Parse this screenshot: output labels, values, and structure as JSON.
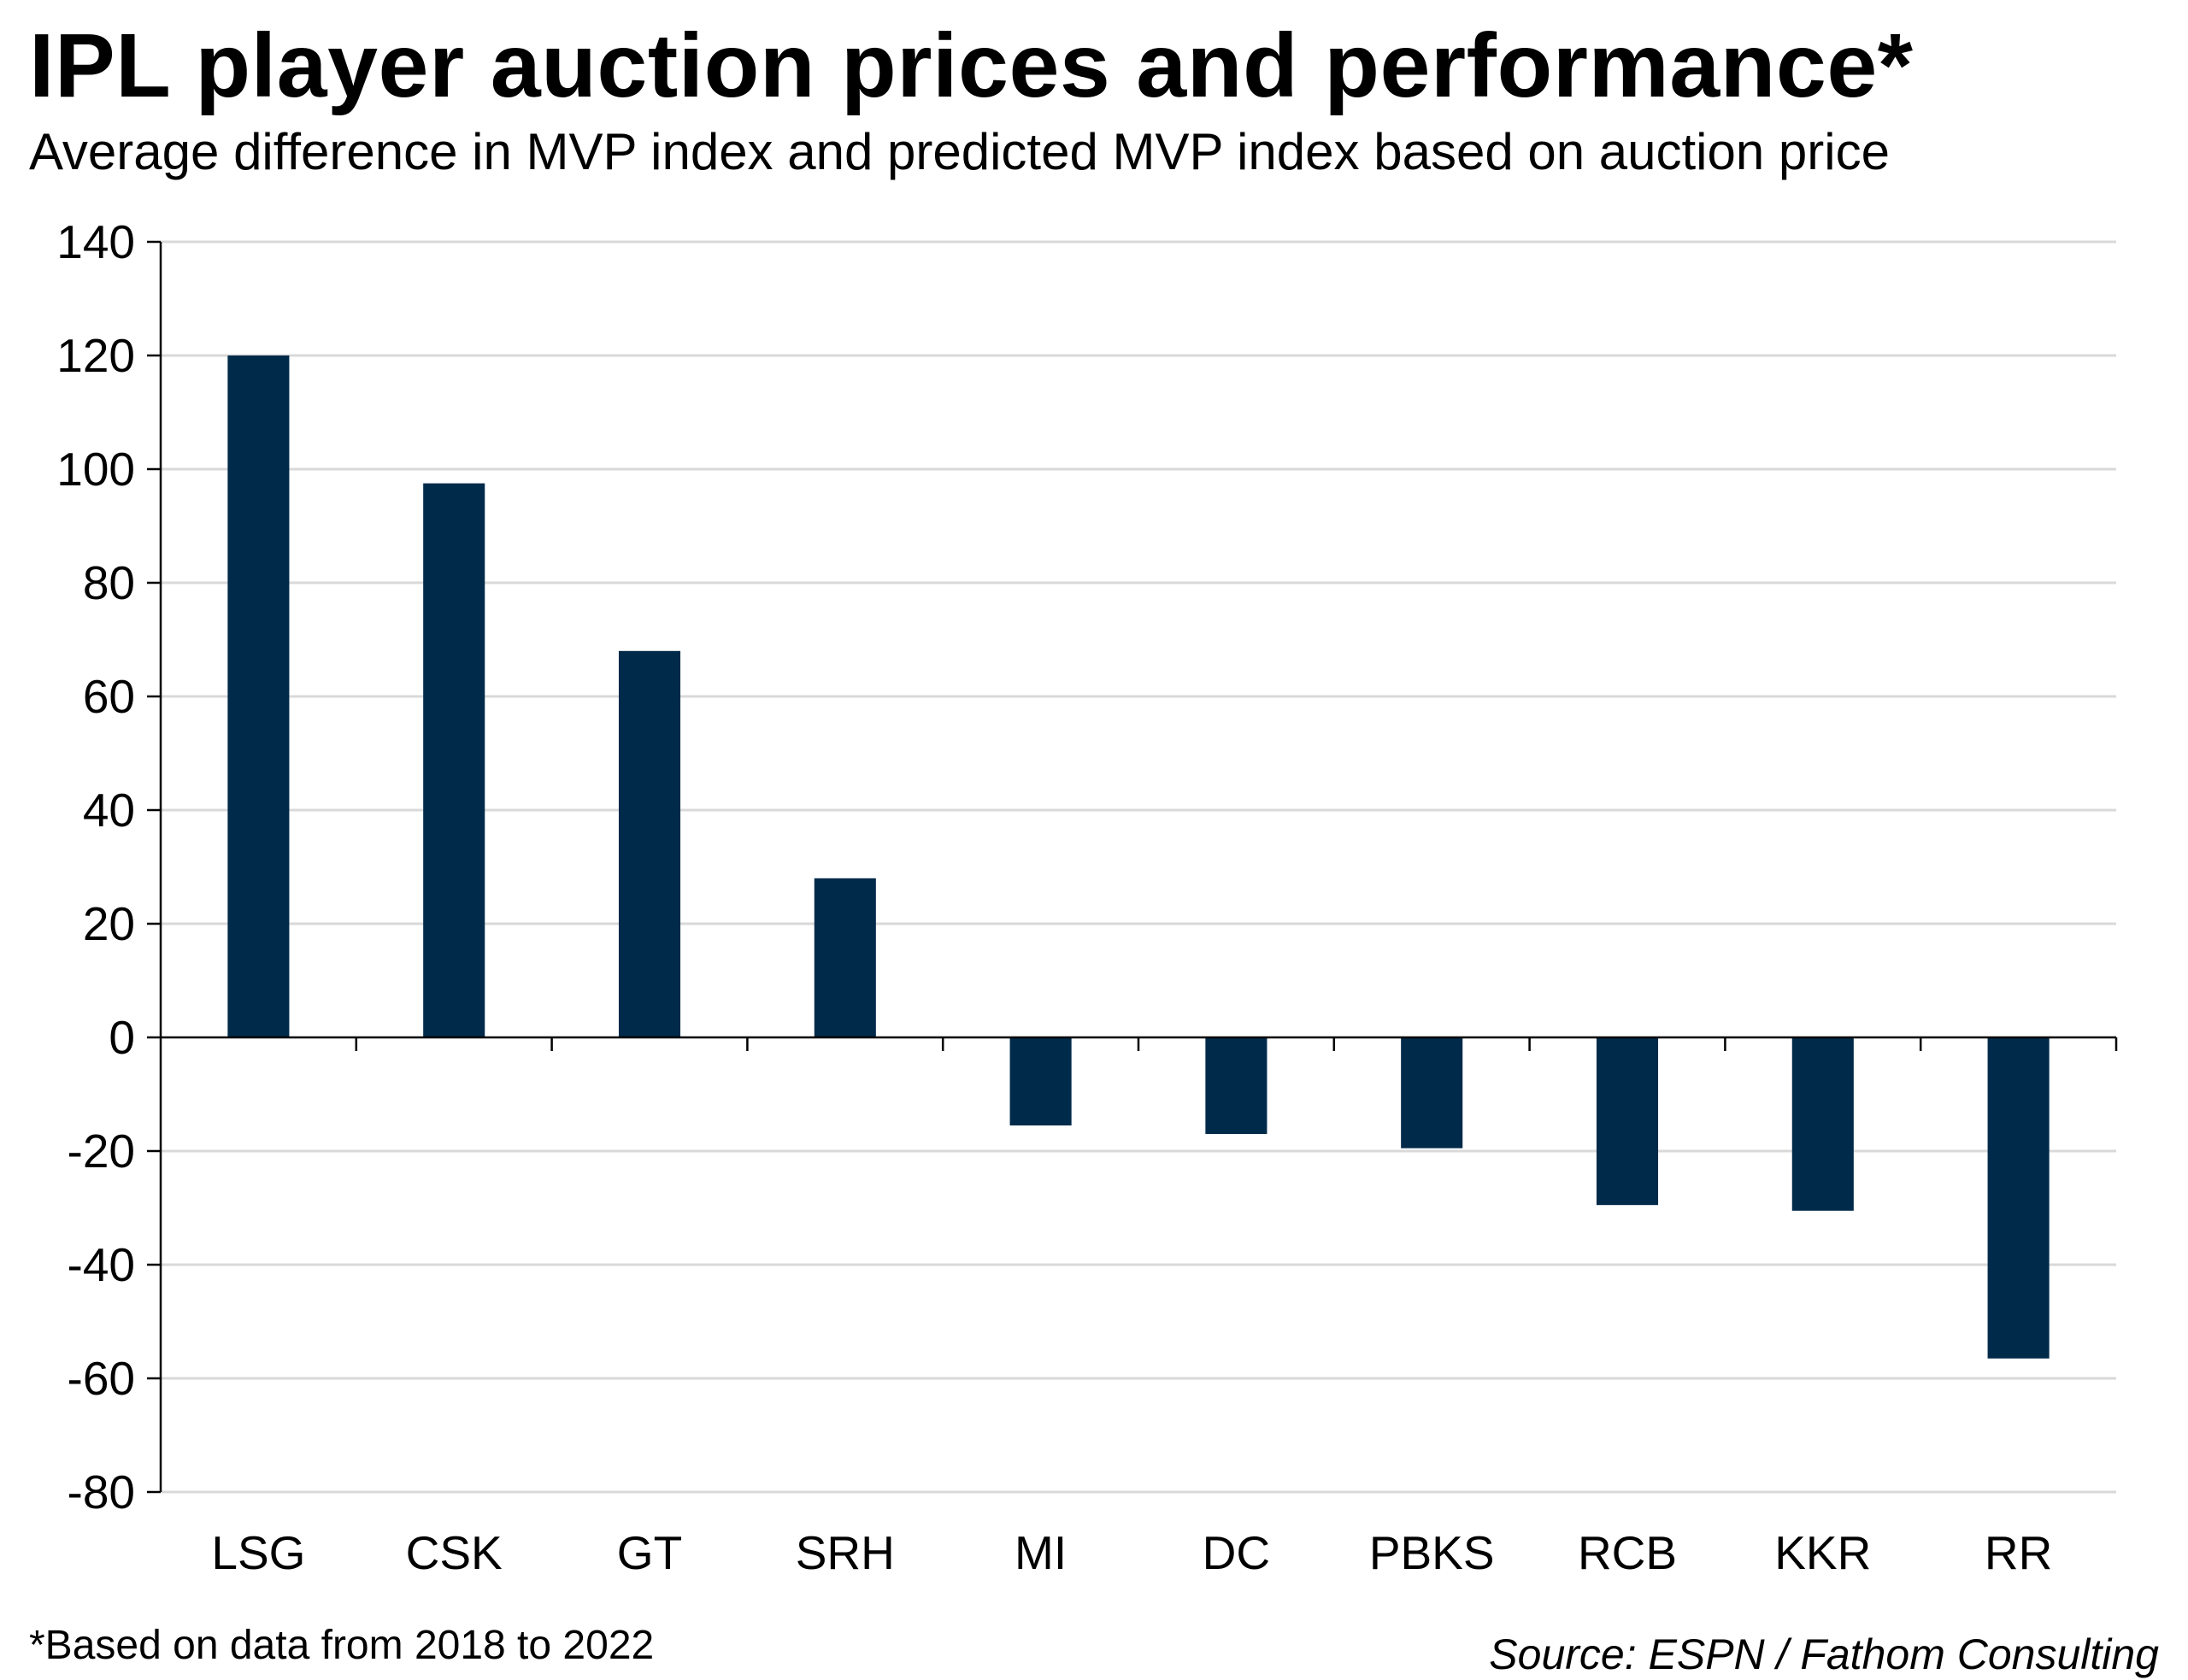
{
  "title": "IPL player auction prices and performance*",
  "subtitle": "Average difference in MVP index and predicted MVP index based on auction price",
  "footnote": "*Based on data from 2018 to 2022",
  "source": "Source: ESPN / Fathom Consulting",
  "colors": {
    "bar": "#002a4a",
    "grid": "#d9d9d9",
    "axis": "#000000"
  },
  "chart_data": {
    "type": "bar",
    "title": "IPL player auction prices and performance*",
    "subtitle": "Average difference in MVP index and predicted MVP index based on auction price",
    "xlabel": "",
    "ylabel": "",
    "categories": [
      "LSG",
      "CSK",
      "GT",
      "SRH",
      "MI",
      "DC",
      "PBKS",
      "RCB",
      "KKR",
      "RR"
    ],
    "values": [
      120,
      97.5,
      68,
      28,
      -15.5,
      -17,
      -19.5,
      -29.5,
      -30.5,
      -56.5
    ],
    "ylim": [
      -80,
      140
    ],
    "yticks": [
      140,
      120,
      100,
      80,
      60,
      40,
      20,
      0,
      -20,
      -40,
      -60,
      -80
    ],
    "ytick_labels": [
      "140",
      "120",
      "100",
      "80",
      "60",
      "40",
      "20",
      "0",
      "-20",
      "-40",
      "-60",
      "-80"
    ],
    "grid": true,
    "legend": "none"
  }
}
